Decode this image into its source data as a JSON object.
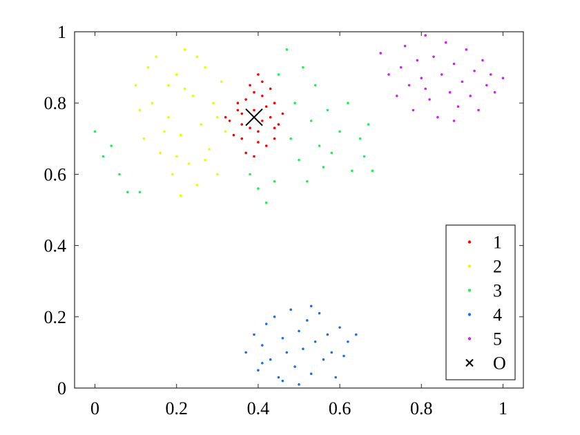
{
  "chart_data": {
    "type": "scatter",
    "title": "",
    "xlabel": "",
    "ylabel": "",
    "xlim": [
      -0.05,
      1.05
    ],
    "ylim": [
      0,
      1
    ],
    "grid": false,
    "legend_position": "bottom-right",
    "x_ticks": [
      {
        "value": 0,
        "label": "0"
      },
      {
        "value": 0.2,
        "label": "0.2"
      },
      {
        "value": 0.4,
        "label": "0.4"
      },
      {
        "value": 0.6,
        "label": "0.6"
      },
      {
        "value": 0.8,
        "label": "0.8"
      },
      {
        "value": 1,
        "label": "1"
      }
    ],
    "y_ticks": [
      {
        "value": 0,
        "label": "0"
      },
      {
        "value": 0.2,
        "label": "0.2"
      },
      {
        "value": 0.4,
        "label": "0.4"
      },
      {
        "value": 0.6,
        "label": "0.6"
      },
      {
        "value": 0.8,
        "label": "0.8"
      },
      {
        "value": 1,
        "label": "1"
      }
    ],
    "series": [
      {
        "name": "1",
        "color": "#ff0000",
        "marker": "dot",
        "points": [
          [
            0.33,
            0.75
          ],
          [
            0.35,
            0.8
          ],
          [
            0.36,
            0.7
          ],
          [
            0.38,
            0.85
          ],
          [
            0.39,
            0.78
          ],
          [
            0.4,
            0.72
          ],
          [
            0.41,
            0.82
          ],
          [
            0.42,
            0.68
          ],
          [
            0.43,
            0.76
          ],
          [
            0.44,
            0.8
          ],
          [
            0.45,
            0.74
          ],
          [
            0.36,
            0.77
          ],
          [
            0.37,
            0.66
          ],
          [
            0.4,
            0.88
          ],
          [
            0.34,
            0.71
          ],
          [
            0.42,
            0.79
          ],
          [
            0.38,
            0.73
          ],
          [
            0.44,
            0.7
          ],
          [
            0.39,
            0.83
          ],
          [
            0.41,
            0.75
          ],
          [
            0.35,
            0.78
          ],
          [
            0.43,
            0.84
          ],
          [
            0.37,
            0.81
          ],
          [
            0.4,
            0.69
          ],
          [
            0.46,
            0.77
          ],
          [
            0.32,
            0.76
          ],
          [
            0.39,
            0.65
          ],
          [
            0.41,
            0.86
          ],
          [
            0.36,
            0.74
          ],
          [
            0.44,
            0.73
          ]
        ]
      },
      {
        "name": "2",
        "color": "#e6ff00",
        "marker": "dot",
        "points": [
          [
            0.1,
            0.85
          ],
          [
            0.12,
            0.7
          ],
          [
            0.14,
            0.8
          ],
          [
            0.15,
            0.93
          ],
          [
            0.16,
            0.66
          ],
          [
            0.18,
            0.76
          ],
          [
            0.19,
            0.6
          ],
          [
            0.2,
            0.88
          ],
          [
            0.21,
            0.71
          ],
          [
            0.22,
            0.95
          ],
          [
            0.23,
            0.63
          ],
          [
            0.24,
            0.82
          ],
          [
            0.25,
            0.57
          ],
          [
            0.26,
            0.74
          ],
          [
            0.27,
            0.9
          ],
          [
            0.28,
            0.67
          ],
          [
            0.29,
            0.8
          ],
          [
            0.3,
            0.6
          ],
          [
            0.31,
            0.86
          ],
          [
            0.32,
            0.72
          ],
          [
            0.11,
            0.78
          ],
          [
            0.13,
            0.9
          ],
          [
            0.17,
            0.72
          ],
          [
            0.21,
            0.54
          ],
          [
            0.22,
            0.84
          ],
          [
            0.25,
            0.93
          ],
          [
            0.27,
            0.64
          ],
          [
            0.3,
            0.76
          ],
          [
            0.2,
            0.65
          ],
          [
            0.18,
            0.85
          ]
        ]
      },
      {
        "name": "3",
        "color": "#22ee55",
        "marker": "dot",
        "points": [
          [
            0.0,
            0.72
          ],
          [
            0.02,
            0.65
          ],
          [
            0.04,
            0.68
          ],
          [
            0.06,
            0.6
          ],
          [
            0.08,
            0.55
          ],
          [
            0.11,
            0.55
          ],
          [
            0.38,
            0.6
          ],
          [
            0.4,
            0.56
          ],
          [
            0.42,
            0.52
          ],
          [
            0.44,
            0.58
          ],
          [
            0.45,
            0.88
          ],
          [
            0.47,
            0.95
          ],
          [
            0.48,
            0.7
          ],
          [
            0.49,
            0.8
          ],
          [
            0.5,
            0.64
          ],
          [
            0.51,
            0.9
          ],
          [
            0.52,
            0.58
          ],
          [
            0.53,
            0.75
          ],
          [
            0.54,
            0.85
          ],
          [
            0.55,
            0.68
          ],
          [
            0.56,
            0.62
          ],
          [
            0.57,
            0.78
          ],
          [
            0.58,
            0.66
          ],
          [
            0.6,
            0.72
          ],
          [
            0.62,
            0.8
          ],
          [
            0.63,
            0.61
          ],
          [
            0.65,
            0.7
          ],
          [
            0.66,
            0.65
          ],
          [
            0.67,
            0.74
          ],
          [
            0.68,
            0.61
          ]
        ]
      },
      {
        "name": "4",
        "color": "#1e6fe0",
        "marker": "dot",
        "points": [
          [
            0.37,
            0.1
          ],
          [
            0.39,
            0.15
          ],
          [
            0.4,
            0.05
          ],
          [
            0.41,
            0.12
          ],
          [
            0.42,
            0.18
          ],
          [
            0.43,
            0.08
          ],
          [
            0.44,
            0.2
          ],
          [
            0.45,
            0.03
          ],
          [
            0.46,
            0.14
          ],
          [
            0.47,
            0.1
          ],
          [
            0.48,
            0.22
          ],
          [
            0.49,
            0.06
          ],
          [
            0.5,
            0.16
          ],
          [
            0.5,
            0.01
          ],
          [
            0.51,
            0.11
          ],
          [
            0.52,
            0.19
          ],
          [
            0.53,
            0.04
          ],
          [
            0.54,
            0.13
          ],
          [
            0.55,
            0.21
          ],
          [
            0.56,
            0.08
          ],
          [
            0.57,
            0.15
          ],
          [
            0.58,
            0.1
          ],
          [
            0.59,
            0.03
          ],
          [
            0.6,
            0.17
          ],
          [
            0.61,
            0.09
          ],
          [
            0.62,
            0.13
          ],
          [
            0.64,
            0.15
          ],
          [
            0.46,
            0.02
          ],
          [
            0.53,
            0.23
          ],
          [
            0.41,
            0.07
          ]
        ]
      },
      {
        "name": "5",
        "color": "#cc22ee",
        "marker": "dot",
        "points": [
          [
            0.7,
            0.94
          ],
          [
            0.72,
            0.88
          ],
          [
            0.74,
            0.82
          ],
          [
            0.75,
            0.9
          ],
          [
            0.76,
            0.96
          ],
          [
            0.77,
            0.85
          ],
          [
            0.78,
            0.78
          ],
          [
            0.79,
            0.92
          ],
          [
            0.8,
            0.87
          ],
          [
            0.81,
            0.99
          ],
          [
            0.82,
            0.81
          ],
          [
            0.83,
            0.93
          ],
          [
            0.84,
            0.76
          ],
          [
            0.85,
            0.88
          ],
          [
            0.86,
            0.97
          ],
          [
            0.87,
            0.83
          ],
          [
            0.88,
            0.91
          ],
          [
            0.89,
            0.79
          ],
          [
            0.9,
            0.86
          ],
          [
            0.91,
            0.95
          ],
          [
            0.92,
            0.82
          ],
          [
            0.93,
            0.89
          ],
          [
            0.94,
            0.78
          ],
          [
            0.95,
            0.92
          ],
          [
            0.96,
            0.85
          ],
          [
            0.97,
            0.88
          ],
          [
            0.98,
            0.83
          ],
          [
            1.0,
            0.87
          ],
          [
            0.81,
            0.84
          ],
          [
            0.88,
            0.75
          ]
        ]
      },
      {
        "name": "O",
        "color": "#000000",
        "marker": "x",
        "points": [
          [
            0.39,
            0.76
          ]
        ]
      }
    ]
  }
}
